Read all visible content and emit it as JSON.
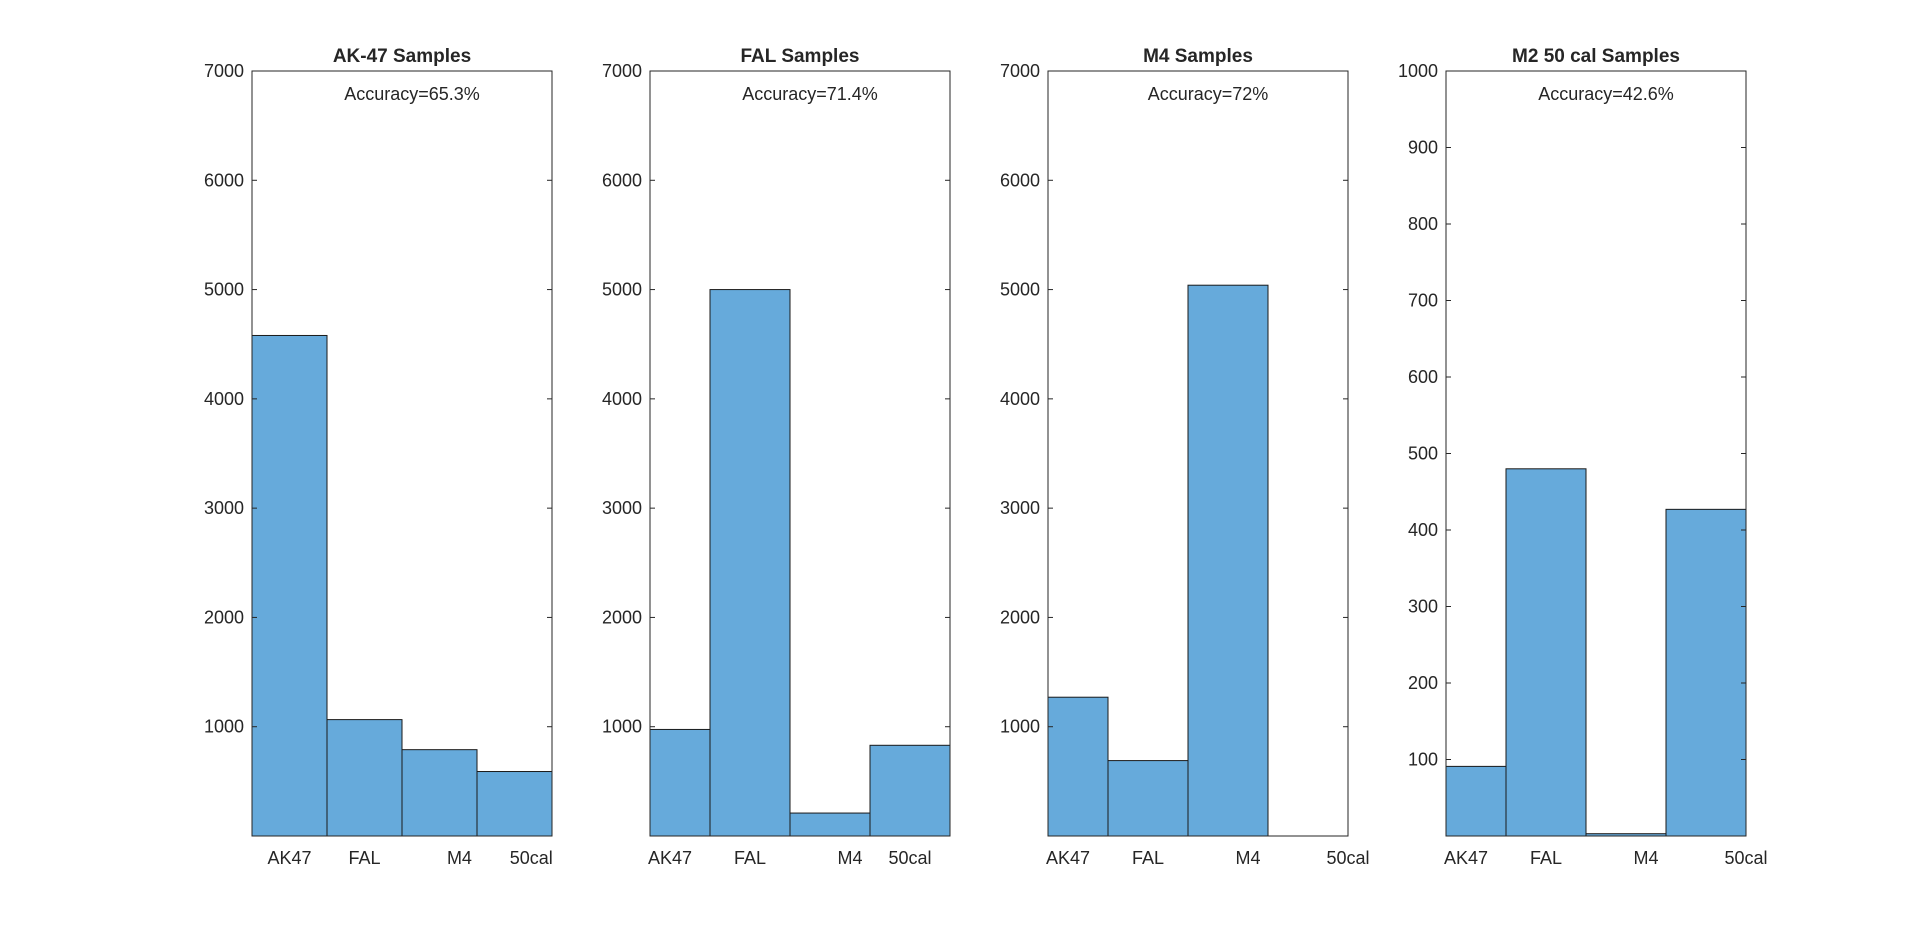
{
  "bar_color": "#66AADB",
  "chart_data": [
    {
      "type": "bar",
      "title": "AK-47 Samples",
      "annotation": "Accuracy=65.3%",
      "categories": [
        "AK47",
        "FAL",
        "M4",
        "50cal"
      ],
      "bin_edges": [
        0,
        0.94,
        1.88,
        2.82,
        3.76
      ],
      "label_positions": [
        0.47,
        1.41,
        2.6,
        3.5
      ],
      "values": [
        4580,
        1065,
        790,
        590
      ],
      "xlim": [
        0,
        3.76
      ],
      "ylim": [
        0,
        7000
      ],
      "yticks": [
        1000,
        2000,
        3000,
        4000,
        5000,
        6000,
        7000
      ],
      "xlabel": "",
      "ylabel": "",
      "grid": false
    },
    {
      "type": "bar",
      "title": "FAL Samples",
      "annotation": "Accuracy=71.4%",
      "categories": [
        "AK47",
        "FAL",
        "M4",
        "50cal"
      ],
      "bin_edges": [
        0,
        0.75,
        1.75,
        2.75,
        3.75
      ],
      "label_positions": [
        0.25,
        1.25,
        2.5,
        3.25
      ],
      "values": [
        975,
        5000,
        210,
        830
      ],
      "xlim": [
        0,
        3.75
      ],
      "ylim": [
        0,
        7000
      ],
      "yticks": [
        1000,
        2000,
        3000,
        4000,
        5000,
        6000,
        7000
      ],
      "xlabel": "",
      "ylabel": "",
      "grid": false
    },
    {
      "type": "bar",
      "title": "M4 Samples",
      "annotation": "Accuracy=72%",
      "categories": [
        "AK47",
        "FAL",
        "M4",
        "50cal"
      ],
      "bin_edges": [
        0,
        0.75,
        1.75,
        2.75,
        3.75
      ],
      "label_positions": [
        0.25,
        1.25,
        2.5,
        3.75
      ],
      "values": [
        1270,
        690,
        5040,
        0
      ],
      "xlim": [
        0,
        3.75
      ],
      "ylim": [
        0,
        7000
      ],
      "yticks": [
        1000,
        2000,
        3000,
        4000,
        5000,
        6000,
        7000
      ],
      "xlabel": "",
      "ylabel": "",
      "grid": false
    },
    {
      "type": "bar",
      "title": "M2 50 cal Samples",
      "annotation": "Accuracy=42.6%",
      "categories": [
        "AK47",
        "FAL",
        "M4",
        "50cal"
      ],
      "bin_edges": [
        0,
        0.75,
        1.75,
        2.75,
        3.75
      ],
      "label_positions": [
        0.25,
        1.25,
        2.5,
        3.75
      ],
      "values": [
        91,
        480,
        3,
        427
      ],
      "xlim": [
        0,
        3.75
      ],
      "ylim": [
        0,
        1000
      ],
      "yticks": [
        100,
        200,
        300,
        400,
        500,
        600,
        700,
        800,
        900,
        1000
      ],
      "xlabel": "",
      "ylabel": "",
      "grid": false
    }
  ]
}
